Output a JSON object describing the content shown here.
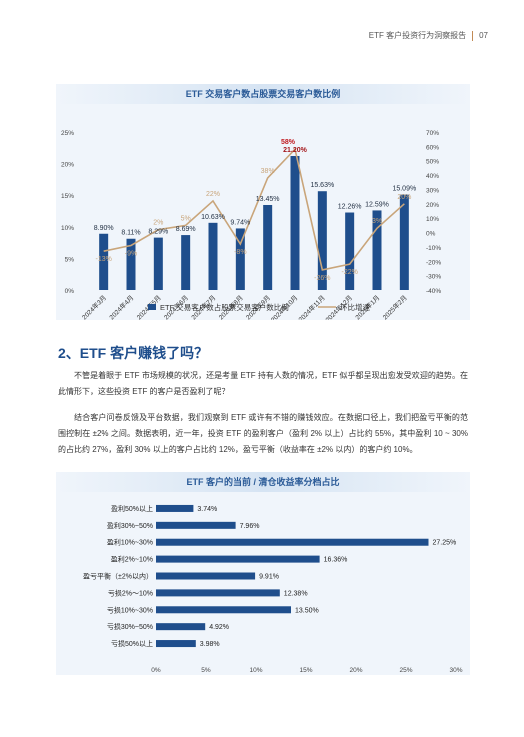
{
  "header": {
    "title": "ETF 客户投资行为洞察报告",
    "page": "07"
  },
  "chart1": {
    "title": "ETF 交易客户数占股票交易客户数比例",
    "legend": {
      "bar": "ETF 交易客户数占股票交易客户数比例",
      "line": "环比增速"
    },
    "left_ticks": [
      "0%",
      "5%",
      "10%",
      "15%",
      "20%",
      "25%"
    ],
    "right_ticks": [
      "-40%",
      "-30%",
      "-20%",
      "-10%",
      "0%",
      "10%",
      "20%",
      "30%",
      "40%",
      "50%",
      "60%",
      "70%"
    ]
  },
  "section": {
    "title": "2、ETF 客户赚钱了吗？"
  },
  "paragraphs": [
    "不管是着眼于 ETF 市场规模的状况，还是考量 ETF 持有人数的情况，ETF 似乎都呈现出愈发受欢迎的趋势。在此情形下，这些投资 ETF 的客户是否盈利了呢？",
    "结合客户问卷反馈及平台数据，我们观察到 ETF 或许有不错的赚钱效应。在数据口径上，我们把盈亏平衡的范围控制在 ±2% 之间。数据表明，近一年，投资 ETF 的盈利客户（盈利 2% 以上）占比约 55%，其中盈利 10 ~ 30% 的占比约 27%，盈利 30% 以上的客户占比约 12%，盈亏平衡（收益率在 ±2% 以内）的客户约 10%。"
  ],
  "chart2": {
    "title": "ETF 客户的当前 / 清仓收益率分档占比",
    "x_ticks": [
      "0%",
      "5%",
      "10%",
      "15%",
      "20%",
      "25%",
      "30%"
    ]
  },
  "chart_data": [
    {
      "type": "bar",
      "title": "ETF 交易客户数占股票交易客户数比例",
      "categories": [
        "2024年3月",
        "2024年4月",
        "2024年5月",
        "2024年6月",
        "2024年7月",
        "2024年8月",
        "2024年9月",
        "2024年10月",
        "2024年11月",
        "2024年12月",
        "2025年1月",
        "2025年2月"
      ],
      "series": [
        {
          "name": "ETF 交易客户数占股票交易客户数比例",
          "type": "bar",
          "axis": "left",
          "color": "#1f4e8c",
          "values": [
            8.9,
            8.11,
            8.29,
            8.69,
            10.63,
            9.74,
            13.45,
            21.2,
            15.63,
            12.26,
            12.59,
            15.09
          ],
          "labels": [
            "8.90%",
            "8.11%",
            "8.29%",
            "8.69%",
            "10.63%",
            "9.74%",
            "13.45%",
            "21.20%",
            "15.63%",
            "12.26%",
            "12.59%",
            "15.09%"
          ]
        },
        {
          "name": "环比增速",
          "type": "line",
          "axis": "right",
          "color": "#c9a57a",
          "values": [
            -13,
            -9,
            2,
            5,
            22,
            -8,
            38,
            58,
            -26,
            -22,
            3,
            20
          ],
          "labels": [
            "-13%",
            "-9%",
            "2%",
            "5%",
            "22%",
            "-8%",
            "38%",
            "58%",
            "-26%",
            "-22%",
            "3%",
            "20%"
          ]
        }
      ],
      "ylim_left": [
        0,
        25
      ],
      "ylim_right": [
        -40,
        70
      ],
      "legend": "bottom"
    },
    {
      "type": "bar",
      "orientation": "horizontal",
      "title": "ETF 客户的当前 / 清仓收益率分档占比",
      "categories": [
        "盈利50%以上",
        "盈利30%~50%",
        "盈利10%~30%",
        "盈利2%~10%",
        "盈亏平衡（±2%以内）",
        "亏损2%～10%",
        "亏损10%~30%",
        "亏损30%~50%",
        "亏损50%以上"
      ],
      "values": [
        3.74,
        7.96,
        27.25,
        16.36,
        9.91,
        12.38,
        13.5,
        4.92,
        3.98
      ],
      "labels": [
        "3.74%",
        "7.96%",
        "27.25%",
        "16.36%",
        "9.91%",
        "12.38%",
        "13.50%",
        "4.92%",
        "3.98%"
      ],
      "xlim": [
        0,
        30
      ],
      "color": "#1f4e8c"
    }
  ]
}
